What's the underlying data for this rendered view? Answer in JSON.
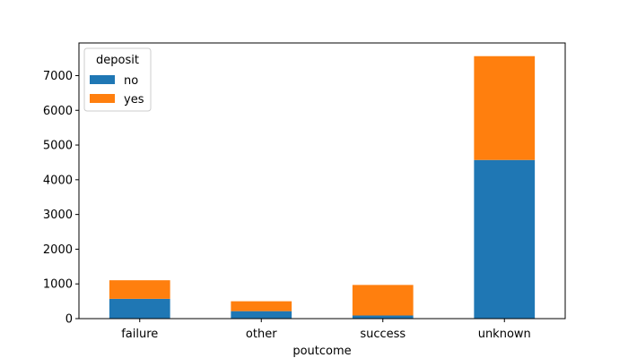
{
  "chart_data": {
    "type": "bar",
    "stacked": true,
    "categories": [
      "failure",
      "other",
      "success",
      "unknown"
    ],
    "series": [
      {
        "name": "no",
        "values": [
          570,
          215,
          90,
          4570
        ],
        "color": "#1f77b4"
      },
      {
        "name": "yes",
        "values": [
          535,
          285,
          880,
          2990
        ],
        "color": "#ff7f0e"
      }
    ],
    "xlabel": "poutcome",
    "ylabel": "",
    "ylim": [
      0,
      7940
    ],
    "yticks": [
      0,
      1000,
      2000,
      3000,
      4000,
      5000,
      6000,
      7000
    ],
    "legend": {
      "title": "deposit",
      "position": "top-left"
    },
    "grid": false
  }
}
